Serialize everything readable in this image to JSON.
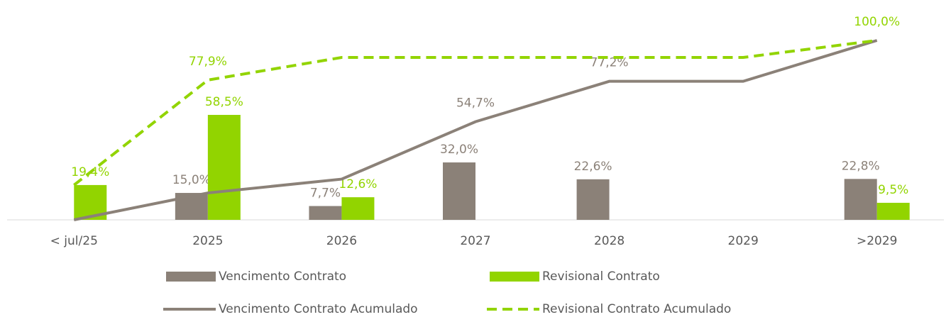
{
  "chart_data": {
    "type": "bar",
    "categories": [
      "< jul/25",
      "2025",
      "2026",
      "2027",
      "2028",
      "2029",
      ">2029"
    ],
    "ylim": [
      0,
      100
    ],
    "series": [
      {
        "name": "Vencimento Contrato",
        "type": "bar",
        "color": "#8b8178",
        "values": [
          null,
          15.0,
          7.7,
          32.0,
          22.6,
          null,
          22.8
        ],
        "value_labels": [
          null,
          "15,0%",
          "7,7%",
          "32,0%",
          "22,6%",
          null,
          "22,8%"
        ]
      },
      {
        "name": "Revisional Contrato",
        "type": "bar",
        "color": "#92d400",
        "values": [
          19.4,
          58.5,
          12.6,
          null,
          null,
          null,
          9.5
        ],
        "value_labels": [
          "19,4%",
          "58,5%",
          "12,6%",
          null,
          null,
          null,
          "9,5%"
        ]
      },
      {
        "name": "Vencimento Contrato Acumulado",
        "type": "line",
        "color": "#8b8178",
        "dashed": false,
        "values": [
          0,
          15.0,
          22.7,
          54.7,
          77.2,
          77.2,
          100.0
        ],
        "value_labels": [
          null,
          null,
          null,
          "54,7%",
          "77,2%",
          null,
          null
        ]
      },
      {
        "name": "Revisional Contrato Acumulado",
        "type": "line",
        "color": "#92d400",
        "dashed": true,
        "values": [
          19.4,
          77.9,
          90.5,
          90.5,
          90.5,
          90.5,
          100.0
        ],
        "value_labels": [
          null,
          "77,9%",
          null,
          null,
          null,
          null,
          "100,0%"
        ]
      }
    ]
  }
}
